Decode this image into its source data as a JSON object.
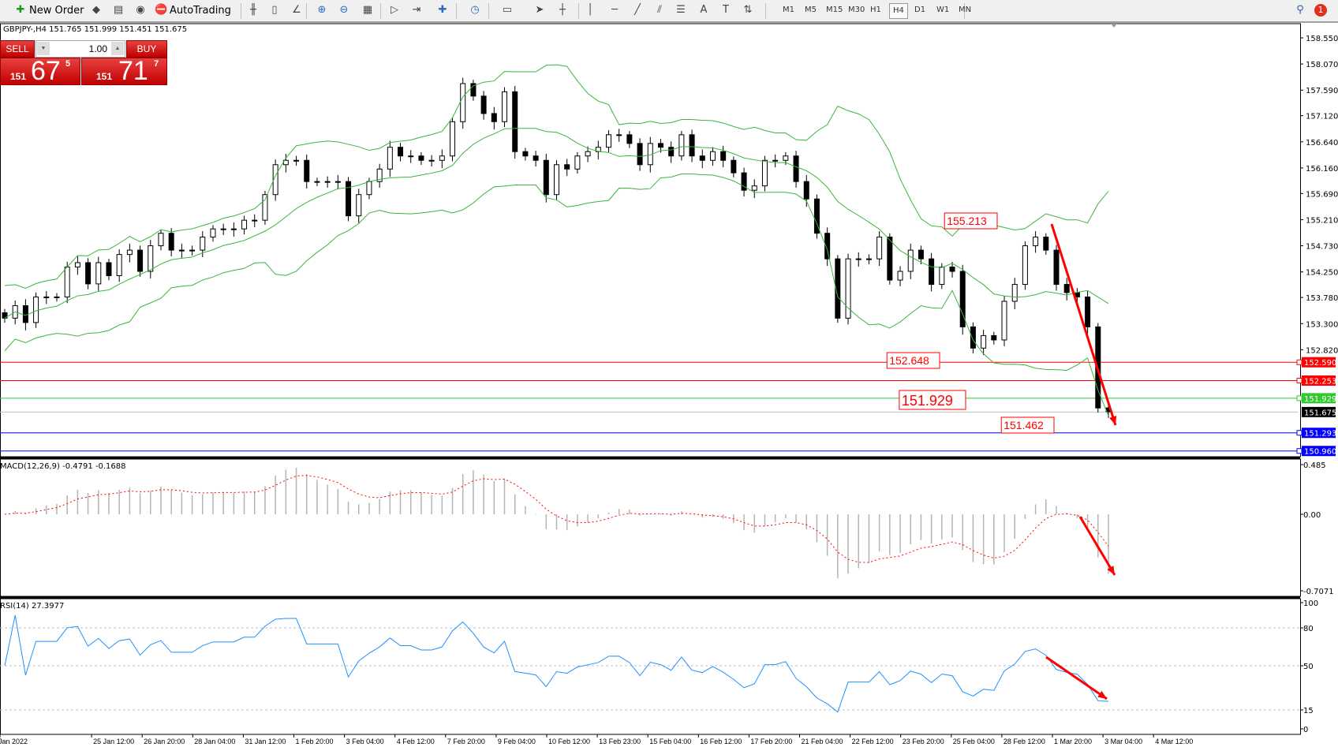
{
  "toolbar": {
    "new_order": "New Order",
    "auto_trading": "AutoTrading",
    "icons": [
      "market-watch-icon",
      "navigator-icon",
      "signals-icon",
      "bar-chart-icon",
      "candlestick-icon",
      "line-chart-icon",
      "zoom-in-icon",
      "zoom-out-icon",
      "tile-windows-icon",
      "auto-scroll-icon",
      "chart-shift-icon",
      "indicators-icon",
      "periods-icon",
      "templates-icon",
      "cursor-icon",
      "crosshair-icon",
      "vertical-line-icon",
      "horizontal-line-icon",
      "trendline-icon",
      "equidistant-channel-icon",
      "fibonacci-icon",
      "text-icon",
      "text-label-icon",
      "arrows-icon"
    ],
    "timeframes": [
      "M1",
      "M5",
      "M15",
      "M30",
      "H1",
      "H4",
      "D1",
      "W1",
      "MN"
    ],
    "selected_timeframe": "H4",
    "notification_count": "1"
  },
  "chart_info": "GBPJPY-,H4  151.765 151.999 151.451 151.675",
  "one_click": {
    "sell_label": "SELL",
    "buy_label": "BUY",
    "lot": "1.00",
    "sell_big": "151",
    "sell_main": "67",
    "sell_sup": "5",
    "buy_big": "151",
    "buy_main": "71",
    "buy_sup": "7"
  },
  "chart_data": {
    "type": "candlestick",
    "symbol": "GBPJPY-",
    "timeframe": "H4",
    "close": [
      153.4,
      153.63,
      153.32,
      153.79,
      153.79,
      153.79,
      154.34,
      154.42,
      154.03,
      154.42,
      154.18,
      154.57,
      154.65,
      154.26,
      154.73,
      154.96,
      154.65,
      154.65,
      154.65,
      154.89,
      155.04,
      155.04,
      155.04,
      155.2,
      155.2,
      155.67,
      156.22,
      156.3,
      156.3,
      155.91,
      155.91,
      155.91,
      155.91,
      155.28,
      155.67,
      155.91,
      156.14,
      156.54,
      156.38,
      156.38,
      156.3,
      156.3,
      156.38,
      157.01,
      157.71,
      157.48,
      157.16,
      157.01,
      157.56,
      156.46,
      156.38,
      156.3,
      155.67,
      156.22,
      156.14,
      156.38,
      156.46,
      156.54,
      156.77,
      156.77,
      156.61,
      156.22,
      156.61,
      156.54,
      156.38,
      156.77,
      156.38,
      156.3,
      156.46,
      156.3,
      156.07,
      155.75,
      155.83,
      156.3,
      156.3,
      156.38,
      155.91,
      155.59,
      154.96,
      154.49,
      153.4,
      154.49,
      154.49,
      154.49,
      154.89,
      154.1,
      154.26,
      154.65,
      154.49,
      154.02,
      154.34,
      154.26,
      153.24,
      152.85,
      153.08,
      153.0,
      153.71,
      154.02,
      154.73,
      154.89,
      154.65,
      154.02,
      153.87,
      153.79,
      153.24,
      151.75,
      151.68
    ],
    "price_axis": {
      "ticks": [
        "158.550",
        "158.070",
        "157.590",
        "157.120",
        "156.640",
        "156.160",
        "155.690",
        "155.210",
        "154.730",
        "154.250",
        "153.780",
        "153.300",
        "152.820"
      ],
      "range": [
        150.91,
        158.7
      ]
    },
    "price_lines": [
      {
        "value": "152.590",
        "color": "#ff0000"
      },
      {
        "value": "152.253",
        "color": "#ff0000"
      },
      {
        "value": "151.929",
        "color": "#32c832"
      },
      {
        "value": "151.675",
        "color": "#000000",
        "line": "#c0c0c0"
      },
      {
        "value": "151.293",
        "color": "#0000ff"
      },
      {
        "value": "150.960",
        "color": "#0000ff"
      }
    ],
    "annotations": [
      "155.213",
      "152.648",
      "151.929",
      "151.462"
    ],
    "indicator_bands": "Bollinger Bands",
    "band_color": "#3cb43c",
    "macd": {
      "label": "MACD(12,26,9) -0.4791 -0.1688",
      "ticks": [
        "0.485",
        "0.00",
        "-0.7071"
      ],
      "range": [
        -0.7071,
        0.485
      ],
      "histogram_color": "#b4b4b4",
      "signal_color": "#ff0000"
    },
    "rsi": {
      "label": "RSI(14) 27.3977",
      "ticks": [
        "100",
        "80",
        "50",
        "15",
        "0"
      ],
      "levels": [
        80,
        50,
        15
      ],
      "color": "#1e90ff"
    },
    "x_labels": [
      "Jan 2022",
      "25 Jan 12:00",
      "26 Jan 20:00",
      "28 Jan 04:00",
      "31 Jan 12:00",
      "1 Feb 20:00",
      "3 Feb 04:00",
      "4 Feb 12:00",
      "7 Feb 20:00",
      "9 Feb 04:00",
      "10 Feb 12:00",
      "13 Feb 23:00",
      "15 Feb 04:00",
      "16 Feb 12:00",
      "17 Feb 20:00",
      "21 Feb 04:00",
      "22 Feb 12:00",
      "23 Feb 20:00",
      "25 Feb 04:00",
      "28 Feb 12:00",
      "1 Mar 20:00",
      "3 Mar 04:00",
      "4 Mar 12:00"
    ],
    "arrow_color": "#ff0000"
  }
}
